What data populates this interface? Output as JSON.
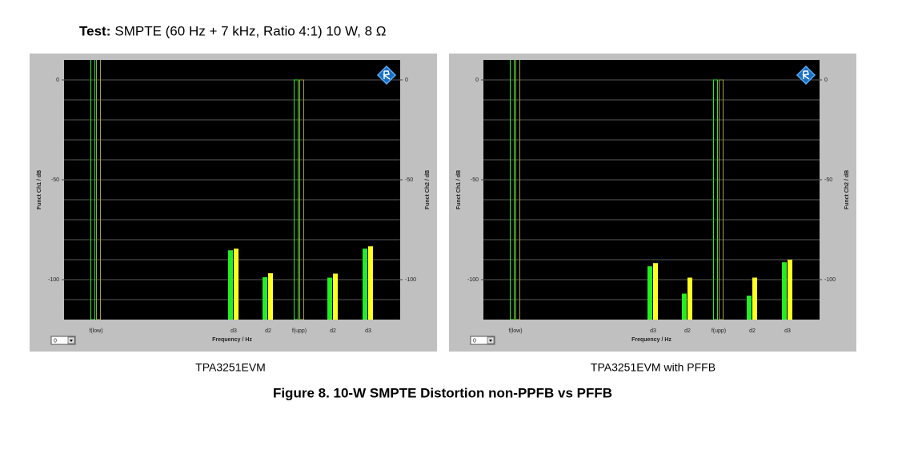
{
  "header": {
    "label": "Test:",
    "text": "SMPTE (60 Hz + 7 kHz, Ratio 4:1) 10 W, 8 Ω"
  },
  "chart_data": [
    {
      "type": "bar",
      "caption": "TPA3251EVM",
      "categories": [
        "f(low)",
        "d3",
        "d2",
        "f(upp)",
        "d2",
        "d3"
      ],
      "series": [
        {
          "color": "#22ee22",
          "values": [
            12,
            -85.3,
            -98.8,
            0,
            -99,
            -84.5
          ]
        },
        {
          "color": "#ffff22",
          "axis": "y2",
          "values": [
            12,
            -84.5,
            -96.8,
            0,
            -97,
            -83.3
          ]
        }
      ],
      "xlabel": "Frequency / Hz",
      "ylabel": "Funct Ch1 / dB",
      "y2label": "Funct Ch2 / dB",
      "ylim": [
        -120,
        10
      ],
      "yticks": [
        0,
        -50,
        -100
      ],
      "y2lim": [
        -120,
        10
      ],
      "y2ticks": [
        0,
        -50,
        -100
      ],
      "ygrid": [
        0,
        -10,
        -20,
        -30,
        -40,
        -50,
        -60,
        -70,
        -80,
        -90,
        -100,
        -110
      ],
      "dropdown": "0"
    },
    {
      "type": "bar",
      "caption": "TPA3251EVM with PFFB",
      "categories": [
        "f(low)",
        "d3",
        "d2",
        "f(upp)",
        "d2",
        "d3"
      ],
      "series": [
        {
          "color": "#22ee22",
          "values": [
            12,
            -93.3,
            -107,
            0,
            -108,
            -91.3
          ]
        },
        {
          "color": "#ffff22",
          "axis": "y2",
          "values": [
            12,
            -91.7,
            -99,
            0,
            -99,
            -90
          ]
        }
      ],
      "xlabel": "Frequency / Hz",
      "ylabel": "Funct Ch1 / dB",
      "y2label": "Funct Ch2 / dB",
      "ylim": [
        -120,
        10
      ],
      "yticks": [
        0,
        -50,
        -100
      ],
      "y2lim": [
        -120,
        10
      ],
      "y2ticks": [
        0,
        -50,
        -100
      ],
      "ygrid": [
        0,
        -10,
        -20,
        -30,
        -40,
        -50,
        -60,
        -70,
        -80,
        -90,
        -100,
        -110
      ],
      "dropdown": "0"
    }
  ],
  "figure_caption": "Figure 8. 10-W SMPTE Distortion non-PPFB vs PFFB"
}
